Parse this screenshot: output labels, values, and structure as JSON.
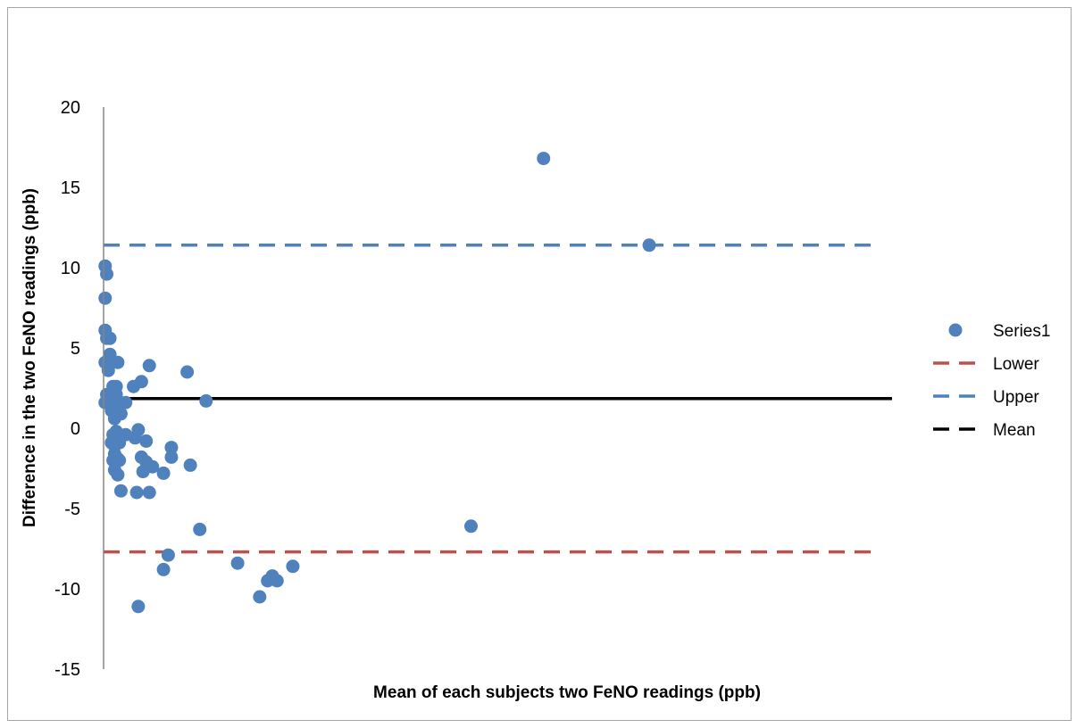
{
  "chart_data": {
    "type": "scatter",
    "title": "",
    "xlabel": "Mean of each subjects two FeNO readings (ppb)",
    "ylabel": "Difference in the two FeNO readings (ppb)",
    "ylim": [
      -15,
      20
    ],
    "xlim": [
      0,
      50
    ],
    "yticks": [
      "-15",
      "-10",
      "-5",
      "0",
      "5",
      "10",
      "15",
      "20"
    ],
    "grid": false,
    "legend_position": "right",
    "colors": {
      "Series1": "#4f81bd",
      "Lower": "#c0504d",
      "Upper": "#4f81bd",
      "Mean": "#000000"
    },
    "series": [
      {
        "name": "Series1",
        "points": [
          [
            0.1,
            10.1
          ],
          [
            0.2,
            9.6
          ],
          [
            0.1,
            8.1
          ],
          [
            0.1,
            6.1
          ],
          [
            0.2,
            5.6
          ],
          [
            0.4,
            5.6
          ],
          [
            0.1,
            4.1
          ],
          [
            0.3,
            3.6
          ],
          [
            0.4,
            4.6
          ],
          [
            0.9,
            4.1
          ],
          [
            2.9,
            3.9
          ],
          [
            5.3,
            3.5
          ],
          [
            0.2,
            2.1
          ],
          [
            0.6,
            2.6
          ],
          [
            0.8,
            2.1
          ],
          [
            0.5,
            1.1
          ],
          [
            0.7,
            0.6
          ],
          [
            0.1,
            1.6
          ],
          [
            0.6,
            1.6
          ],
          [
            0.9,
            1.6
          ],
          [
            1.4,
            1.6
          ],
          [
            0.8,
            1.1
          ],
          [
            1.1,
            0.9
          ],
          [
            0.6,
            2.1
          ],
          [
            0.8,
            2.6
          ],
          [
            0.6,
            -0.4
          ],
          [
            0.8,
            -0.2
          ],
          [
            0.5,
            -0.9
          ],
          [
            0.7,
            -1.1
          ],
          [
            1.0,
            -0.9
          ],
          [
            1.4,
            -0.4
          ],
          [
            0.7,
            -1.6
          ],
          [
            0.6,
            -2.0
          ],
          [
            0.9,
            -1.9
          ],
          [
            1.0,
            -2.0
          ],
          [
            0.7,
            -2.6
          ],
          [
            0.9,
            -2.9
          ],
          [
            1.1,
            -3.9
          ],
          [
            2.0,
            -0.6
          ],
          [
            2.2,
            -0.1
          ],
          [
            2.7,
            -0.8
          ],
          [
            2.4,
            -1.8
          ],
          [
            2.7,
            -2.1
          ],
          [
            3.1,
            -2.4
          ],
          [
            2.5,
            -2.7
          ],
          [
            2.1,
            -4.0
          ],
          [
            2.9,
            -4.0
          ],
          [
            3.8,
            -2.8
          ],
          [
            4.3,
            -1.2
          ],
          [
            4.3,
            -1.8
          ],
          [
            5.5,
            -2.3
          ],
          [
            1.9,
            2.6
          ],
          [
            2.4,
            2.9
          ],
          [
            6.5,
            1.7
          ],
          [
            6.1,
            -6.3
          ],
          [
            4.1,
            -7.9
          ],
          [
            3.8,
            -8.8
          ],
          [
            2.2,
            -11.1
          ],
          [
            8.5,
            -8.4
          ],
          [
            9.9,
            -10.5
          ],
          [
            10.4,
            -9.5
          ],
          [
            10.7,
            -9.2
          ],
          [
            11.0,
            -9.5
          ],
          [
            12.0,
            -8.6
          ],
          [
            23.3,
            -6.1
          ],
          [
            27.9,
            16.8
          ],
          [
            34.6,
            11.4
          ]
        ]
      },
      {
        "name": "Lower",
        "value": -7.7
      },
      {
        "name": "Upper",
        "value": 11.4
      },
      {
        "name": "Mean",
        "value": 1.85
      }
    ]
  }
}
